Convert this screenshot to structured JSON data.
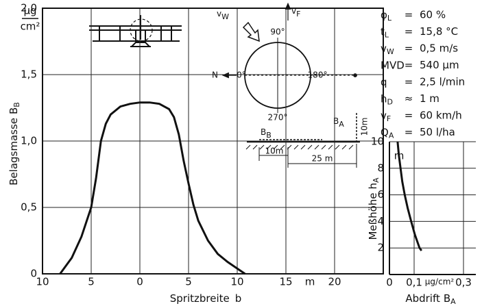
{
  "chart_data": [
    {
      "type": "line",
      "y_unit_num": "µg",
      "y_unit_den": "cm²",
      "y_label": "Belagsmasse",
      "y_label_symbol": "B",
      "y_label_sub": "B",
      "x_label": "Spritzbreite",
      "x_label_symbol": "b",
      "x_unit": "m",
      "x": [
        -8.2,
        -7,
        -6,
        -5,
        -4.5,
        -4,
        -3.5,
        -3,
        -2,
        -1,
        0,
        1,
        2,
        3,
        3.5,
        4,
        4.5,
        5,
        5.5,
        6,
        7,
        8,
        9,
        10,
        10.8
      ],
      "values": [
        0,
        0.12,
        0.28,
        0.5,
        0.72,
        1.0,
        1.13,
        1.2,
        1.26,
        1.28,
        1.29,
        1.29,
        1.28,
        1.24,
        1.18,
        1.05,
        0.85,
        0.68,
        0.52,
        0.4,
        0.25,
        0.15,
        0.09,
        0.04,
        0
      ],
      "color": "#111111",
      "xlim": [
        -10,
        25
      ],
      "xticks": [
        {
          "value": -10,
          "label": "10"
        },
        {
          "value": -5,
          "label": "5"
        },
        0,
        5,
        10,
        15,
        20
      ],
      "ylim": [
        0,
        2
      ],
      "yticks": [
        0,
        {
          "value": 0.5,
          "label": "0,5"
        },
        {
          "value": 1,
          "label": "1,0"
        },
        {
          "value": 1.5,
          "label": "1,5"
        },
        {
          "value": 2,
          "label": "2,0"
        }
      ],
      "grid": true
    },
    {
      "type": "line",
      "x_label": "Abdrift",
      "x_label_symbol": "B",
      "x_label_sub": "A",
      "x_unit": "µg/cm²",
      "y_label": "Meßhöhe",
      "y_label_symbol": "h",
      "y_label_sub": "A",
      "y_unit": "m",
      "x": [
        0.033,
        0.038,
        0.045,
        0.052,
        0.062,
        0.074,
        0.088,
        0.103,
        0.122,
        0.13
      ],
      "values": [
        10,
        9,
        8,
        7,
        6,
        5,
        4,
        3,
        2,
        1.8
      ],
      "color": "#111111",
      "xlim": [
        0,
        0.35
      ],
      "xticks": [
        0,
        {
          "value": 0.1,
          "label": "0,1"
        },
        {
          "value": 0.3,
          "label": "0,3"
        }
      ],
      "ylim": [
        0,
        10
      ],
      "yticks": [
        2,
        4,
        6,
        8,
        10
      ],
      "grid": true
    }
  ],
  "conditions": [
    {
      "symbol": "φ",
      "sub": "L",
      "op": "=",
      "value": "60 %"
    },
    {
      "symbol": "t",
      "sub": "L",
      "op": "=",
      "value": "15,8 °C"
    },
    {
      "symbol": "v",
      "sub": "W",
      "op": "=",
      "value": "0,5 m/s"
    },
    {
      "symbol": "MVD",
      "op": "=",
      "value": "540 µm"
    },
    {
      "symbol": "q",
      "op": "=",
      "value": "2,5 l/min"
    },
    {
      "symbol": "h",
      "sub": "D",
      "op": "≈",
      "value": "1 m"
    },
    {
      "symbol": "v",
      "sub": "F",
      "op": "=",
      "value": "60 km/h"
    },
    {
      "symbol": "Q",
      "sub": "A",
      "op": "=",
      "value": "50 l/ha"
    }
  ],
  "wind_diagram": {
    "wind": {
      "symbol": "v",
      "sub": "W"
    },
    "flight": {
      "symbol": "v",
      "sub": "F"
    },
    "north": "N",
    "angles": [
      "0°",
      "90°",
      "180°",
      "270°"
    ]
  },
  "field_diagram": {
    "deposit": {
      "symbol": "B",
      "sub": "B"
    },
    "drift": {
      "symbol": "B",
      "sub": "A"
    },
    "height": "10m",
    "offset": "10m",
    "distance": "25 m"
  }
}
